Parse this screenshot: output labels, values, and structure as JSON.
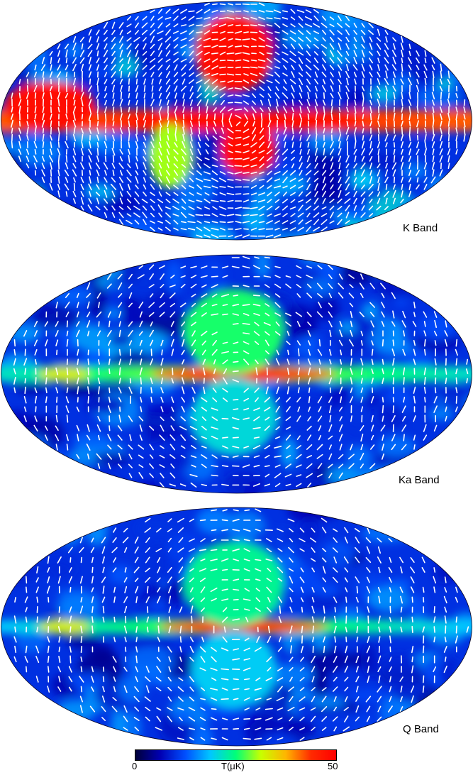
{
  "maps": [
    {
      "key": "k",
      "label": "K Band",
      "intensity": 1.0,
      "stick_density": 1.0
    },
    {
      "key": "ka",
      "label": "Ka Band",
      "intensity": 0.55,
      "stick_density": 0.55
    },
    {
      "key": "q",
      "label": "Q Band",
      "intensity": 0.42,
      "stick_density": 0.5
    }
  ],
  "colorbar": {
    "min_label": "0",
    "mid_label": "T(μK)",
    "max_label": "50",
    "colors": [
      "#00003a",
      "#0000b4",
      "#0050ff",
      "#00c8ff",
      "#00ff78",
      "#c8ff00",
      "#ffb400",
      "#ff2a00",
      "#ff0000"
    ]
  }
}
